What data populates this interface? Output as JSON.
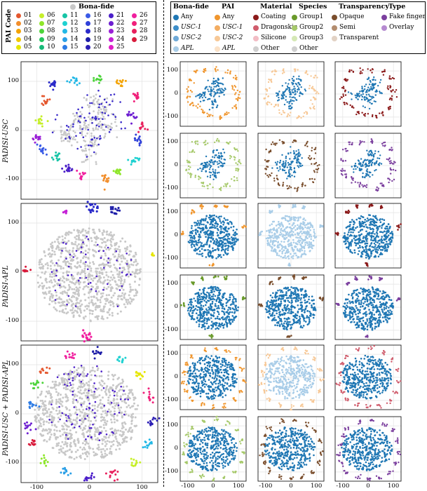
{
  "chart_data": {
    "type": "scatter",
    "left_legend": {
      "title": "PAI Code",
      "bonafide_label": "Bona-fide",
      "codes": [
        "01",
        "02",
        "03",
        "04",
        "05",
        "06",
        "07",
        "08",
        "09",
        "10",
        "11",
        "12",
        "13",
        "14",
        "15",
        "16",
        "17",
        "18",
        "19",
        "20",
        "21",
        "22",
        "23",
        "24",
        "25",
        "26",
        "27",
        "28",
        "29"
      ],
      "colors": [
        "#e4572e",
        "#f28e2b",
        "#f4a300",
        "#f2c700",
        "#e6e600",
        "#c6ef2a",
        "#8ee62a",
        "#4cd43a",
        "#22c55e",
        "#17b978",
        "#16c4a6",
        "#1fd1d1",
        "#22b8e6",
        "#2a9fe6",
        "#2c7be5",
        "#3a5be6",
        "#2f40d9",
        "#2a2ac9",
        "#1d1da8",
        "#2c1fb5",
        "#4b1fc9",
        "#6d1fd1",
        "#9a1fd6",
        "#c41fd6",
        "#e01fc7",
        "#f01f9e",
        "#f0207a",
        "#e81f5c",
        "#d81b3b"
      ],
      "bonafide_color": "#c8c8c8"
    },
    "right_legend": {
      "columns": [
        {
          "title": "Bona-fide",
          "items": [
            "Any",
            "USC-1",
            "USC-2",
            "APL"
          ],
          "colors": [
            "#1f77b4",
            "#3d8ec9",
            "#6ea9d8",
            "#a9cde8"
          ]
        },
        {
          "title": "PAI",
          "items": [
            "Any",
            "USC-1",
            "USC-2",
            "APL"
          ],
          "colors": [
            "#f0962e",
            "#f3ad62",
            "#f7c896",
            "#fbe2c8"
          ]
        },
        {
          "title": "Material",
          "items": [
            "Coating",
            "Dragonskin",
            "Silicone",
            "Other"
          ],
          "colors": [
            "#8b1a1a",
            "#d05c6c",
            "#f2bcc4",
            "#cfcfcf"
          ]
        },
        {
          "title": "Species",
          "items": [
            "Group1",
            "Group2",
            "Group3",
            "Other"
          ],
          "colors": [
            "#6a9a2b",
            "#a6c96a",
            "#d5e8b5",
            "#cfcfcf"
          ]
        },
        {
          "title": "Transparency",
          "items": [
            "Opaque",
            "Semi",
            "Transparent"
          ],
          "colors": [
            "#7a4e2d",
            "#b38d6f",
            "#e2d2c4"
          ]
        },
        {
          "title": "Type",
          "items": [
            "Fake finger",
            "Overlay"
          ],
          "colors": [
            "#7b3f9e",
            "#b58ad0"
          ]
        }
      ]
    },
    "rows": [
      "PADISI-USC",
      "PADISI-APL",
      "PADISI-USC + PADISI-APL"
    ],
    "xlim": [
      -130,
      130
    ],
    "ylim": [
      -140,
      140
    ],
    "xticks": [
      -100,
      0,
      100
    ],
    "yticks": [
      100,
      0,
      -100
    ],
    "xtick_labels": [
      "-100",
      "0",
      "100"
    ],
    "ytick_labels": [
      "100",
      "0",
      "-100"
    ],
    "grid": true,
    "clusters": {
      "usc_main": [
        [
          -35,
          -10
        ],
        [
          -10,
          5
        ],
        [
          15,
          20
        ],
        [
          5,
          -25
        ],
        [
          25,
          45
        ],
        [
          -20,
          20
        ],
        [
          -45,
          -5
        ],
        [
          10,
          55
        ],
        [
          35,
          10
        ],
        [
          -5,
          -45
        ]
      ],
      "usc_pai": [
        [
          -85,
          60
        ],
        [
          -95,
          20
        ],
        [
          -60,
          -55
        ],
        [
          -90,
          -40
        ],
        [
          -40,
          -80
        ],
        [
          -15,
          -90
        ],
        [
          30,
          -100
        ],
        [
          55,
          -85
        ],
        [
          85,
          -60
        ],
        [
          95,
          -20
        ],
        [
          80,
          30
        ],
        [
          90,
          70
        ],
        [
          60,
          95
        ],
        [
          15,
          105
        ],
        [
          -30,
          100
        ],
        [
          -70,
          95
        ],
        [
          -100,
          -15
        ],
        [
          100,
          10
        ]
      ],
      "apl_pai": [
        [
          10,
          130
        ],
        [
          50,
          125
        ],
        [
          -45,
          125
        ],
        [
          -120,
          10
        ],
        [
          120,
          38
        ],
        [
          -5,
          -125
        ],
        [
          -80,
          105
        ]
      ],
      "comb_pai": [
        [
          -85,
          90
        ],
        [
          -100,
          60
        ],
        [
          -110,
          20
        ],
        [
          -115,
          -25
        ],
        [
          -105,
          -60
        ],
        [
          -85,
          -95
        ],
        [
          -45,
          -120
        ],
        [
          0,
          -130
        ],
        [
          45,
          -125
        ],
        [
          85,
          -100
        ],
        [
          110,
          -60
        ],
        [
          120,
          -15
        ],
        [
          115,
          35
        ],
        [
          95,
          80
        ],
        [
          60,
          110
        ],
        [
          15,
          125
        ],
        [
          -35,
          120
        ]
      ]
    }
  }
}
